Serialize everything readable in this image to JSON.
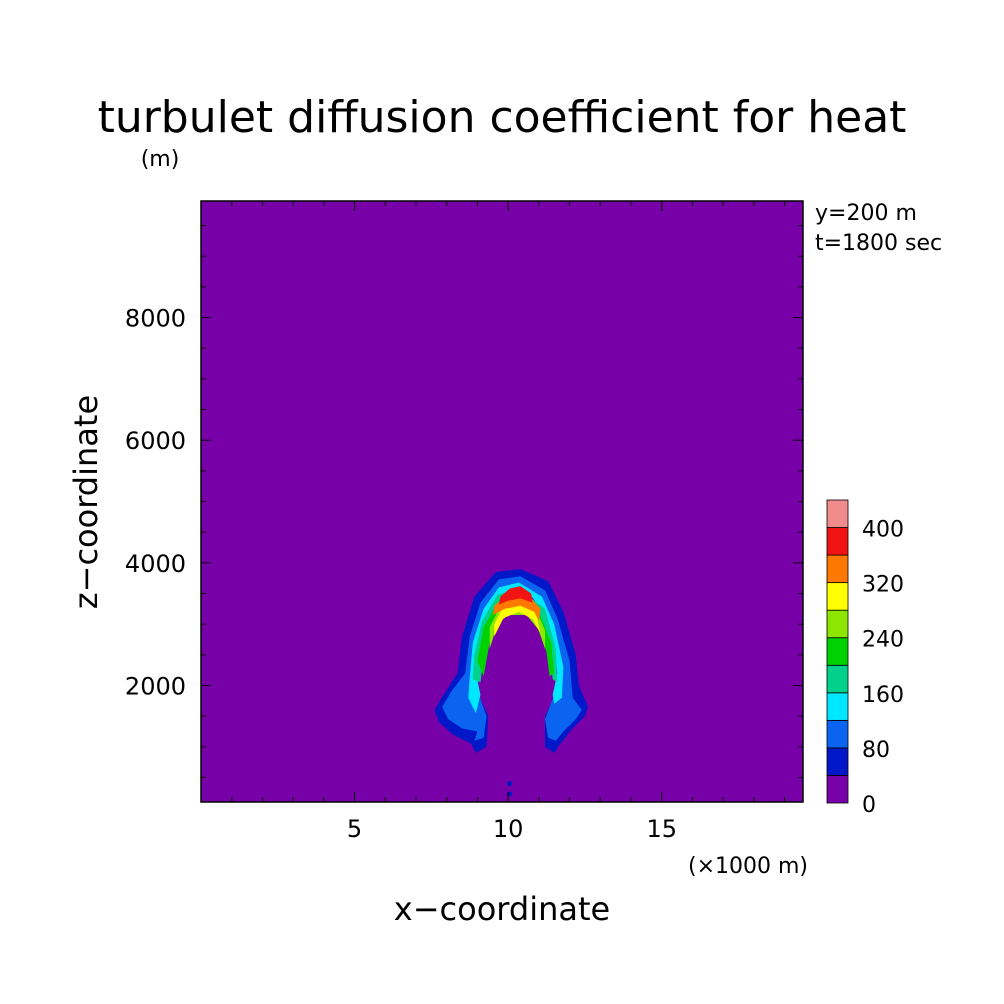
{
  "chart_data": {
    "type": "heatmap",
    "title": "turbulet diffusion coefficient for heat",
    "ylabel_unit": "(m)",
    "xlabel": "x−coordinate",
    "ylabel": "z−coordinate",
    "xunit": "(×1000 m)",
    "annotations": [
      "y=200 m",
      "t=1800 sec"
    ],
    "xlim": [
      0,
      19.6
    ],
    "ylim": [
      100,
      9900
    ],
    "xticks": [
      5,
      10,
      15
    ],
    "yticks": [
      2000,
      4000,
      6000,
      8000
    ],
    "colorbar": {
      "levels": [
        0,
        40,
        80,
        120,
        160,
        200,
        240,
        280,
        320,
        360,
        400,
        440
      ],
      "tick_labels": [
        "0",
        "80",
        "160",
        "240",
        "320",
        "400"
      ],
      "colors": [
        "#7800a8",
        "#0018c8",
        "#0a64f0",
        "#00e8ff",
        "#00d28c",
        "#00d200",
        "#8ce600",
        "#ffff00",
        "#ff7800",
        "#f01414",
        "#f08c8c"
      ]
    },
    "contours": [
      {
        "level": 40,
        "color": "#0018c8",
        "points": [
          [
            8.8,
            1050
          ],
          [
            8.95,
            900
          ],
          [
            9.3,
            1000
          ],
          [
            9.35,
            1500
          ],
          [
            9.0,
            1900
          ],
          [
            8.85,
            2300
          ],
          [
            8.95,
            3000
          ],
          [
            9.3,
            3500
          ],
          [
            9.9,
            3700
          ],
          [
            10.3,
            3750
          ],
          [
            10.8,
            3650
          ],
          [
            11.2,
            3400
          ],
          [
            11.6,
            2900
          ],
          [
            11.8,
            2300
          ],
          [
            11.6,
            1900
          ],
          [
            11.2,
            1500
          ],
          [
            11.2,
            1000
          ],
          [
            11.5,
            900
          ],
          [
            11.7,
            1050
          ],
          [
            12.1,
            1300
          ],
          [
            12.5,
            1500
          ],
          [
            12.6,
            1650
          ],
          [
            12.3,
            2000
          ],
          [
            12.2,
            2500
          ],
          [
            11.8,
            3200
          ],
          [
            11.3,
            3700
          ],
          [
            10.4,
            3900
          ],
          [
            9.6,
            3850
          ],
          [
            8.9,
            3450
          ],
          [
            8.5,
            2800
          ],
          [
            8.35,
            2200
          ],
          [
            7.9,
            1850
          ],
          [
            7.6,
            1600
          ],
          [
            7.75,
            1400
          ],
          [
            8.2,
            1200
          ]
        ]
      },
      {
        "level": 80,
        "color": "#0a64f0",
        "points": [
          [
            9.0,
            1250
          ],
          [
            8.9,
            1100
          ],
          [
            9.2,
            1150
          ],
          [
            9.3,
            1500
          ],
          [
            9.05,
            1850
          ],
          [
            8.95,
            2400
          ],
          [
            9.1,
            2900
          ],
          [
            9.45,
            3400
          ],
          [
            9.95,
            3600
          ],
          [
            10.3,
            3620
          ],
          [
            10.75,
            3550
          ],
          [
            11.15,
            3250
          ],
          [
            11.5,
            2800
          ],
          [
            11.65,
            2300
          ],
          [
            11.5,
            1850
          ],
          [
            11.2,
            1450
          ],
          [
            11.3,
            1150
          ],
          [
            11.55,
            1100
          ],
          [
            11.8,
            1250
          ],
          [
            12.2,
            1450
          ],
          [
            12.4,
            1600
          ],
          [
            12.1,
            1800
          ],
          [
            12.0,
            2400
          ],
          [
            11.6,
            3100
          ],
          [
            11.2,
            3550
          ],
          [
            10.4,
            3780
          ],
          [
            9.7,
            3730
          ],
          [
            9.1,
            3350
          ],
          [
            8.75,
            2800
          ],
          [
            8.6,
            2200
          ],
          [
            8.15,
            1900
          ],
          [
            7.85,
            1650
          ],
          [
            8.05,
            1450
          ],
          [
            8.5,
            1300
          ]
        ]
      },
      {
        "level": 120,
        "color": "#00e8ff",
        "points": [
          [
            8.95,
            1550
          ],
          [
            9.1,
            1850
          ],
          [
            8.95,
            2200
          ],
          [
            9.05,
            2700
          ],
          [
            9.35,
            3200
          ],
          [
            9.8,
            3480
          ],
          [
            10.3,
            3520
          ],
          [
            10.8,
            3430
          ],
          [
            11.2,
            3150
          ],
          [
            11.5,
            2700
          ],
          [
            11.6,
            2200
          ],
          [
            11.45,
            1850
          ],
          [
            11.5,
            1700
          ],
          [
            11.75,
            1800
          ],
          [
            11.8,
            2300
          ],
          [
            11.5,
            3000
          ],
          [
            11.1,
            3450
          ],
          [
            10.35,
            3680
          ],
          [
            9.7,
            3600
          ],
          [
            9.2,
            3250
          ],
          [
            8.85,
            2700
          ],
          [
            8.75,
            2150
          ],
          [
            8.7,
            1800
          ]
        ]
      },
      {
        "level": 160,
        "color": "#00d28c",
        "points": [
          [
            9.1,
            2050
          ],
          [
            9.2,
            2500
          ],
          [
            9.45,
            3000
          ],
          [
            9.85,
            3350
          ],
          [
            10.3,
            3400
          ],
          [
            10.75,
            3320
          ],
          [
            11.1,
            3050
          ],
          [
            11.35,
            2600
          ],
          [
            11.45,
            2100
          ],
          [
            11.6,
            2050
          ],
          [
            11.55,
            2600
          ],
          [
            11.2,
            3250
          ],
          [
            10.35,
            3580
          ],
          [
            9.65,
            3480
          ],
          [
            9.15,
            3050
          ],
          [
            8.9,
            2500
          ],
          [
            8.85,
            2100
          ]
        ]
      },
      {
        "level": 200,
        "color": "#00d200",
        "points": [
          [
            9.2,
            2150
          ],
          [
            9.4,
            2700
          ],
          [
            9.7,
            3050
          ],
          [
            10.05,
            3200
          ],
          [
            10.55,
            3200
          ],
          [
            10.95,
            2950
          ],
          [
            11.25,
            2550
          ],
          [
            11.35,
            2150
          ],
          [
            11.5,
            2200
          ],
          [
            11.4,
            2700
          ],
          [
            11.0,
            3200
          ],
          [
            10.35,
            3480
          ],
          [
            9.7,
            3380
          ],
          [
            9.2,
            2950
          ],
          [
            9.0,
            2400
          ]
        ]
      },
      {
        "level": 240,
        "color": "#8ce600",
        "points": [
          [
            9.4,
            2600
          ],
          [
            9.65,
            3000
          ],
          [
            10.0,
            3150
          ],
          [
            10.6,
            3150
          ],
          [
            11.0,
            2900
          ],
          [
            11.2,
            2600
          ],
          [
            11.2,
            2900
          ],
          [
            10.9,
            3250
          ],
          [
            10.35,
            3400
          ],
          [
            9.75,
            3300
          ],
          [
            9.4,
            2950
          ]
        ]
      },
      {
        "level": 280,
        "color": "#ffff00",
        "points": [
          [
            9.55,
            2800
          ],
          [
            9.85,
            3100
          ],
          [
            10.35,
            3200
          ],
          [
            10.8,
            3080
          ],
          [
            11.05,
            2850
          ],
          [
            10.9,
            3200
          ],
          [
            10.35,
            3340
          ],
          [
            9.8,
            3250
          ],
          [
            9.55,
            3000
          ]
        ]
      },
      {
        "level": 320,
        "color": "#ff7800",
        "points": [
          [
            9.5,
            3150
          ],
          [
            9.9,
            3250
          ],
          [
            10.4,
            3300
          ],
          [
            10.85,
            3200
          ],
          [
            11.0,
            3050
          ],
          [
            11.05,
            3250
          ],
          [
            10.7,
            3450
          ],
          [
            10.3,
            3500
          ],
          [
            9.9,
            3450
          ],
          [
            9.55,
            3300
          ]
        ]
      },
      {
        "level": 360,
        "color": "#f01414",
        "points": [
          [
            9.7,
            3320
          ],
          [
            10.0,
            3380
          ],
          [
            10.4,
            3420
          ],
          [
            10.8,
            3350
          ],
          [
            10.75,
            3500
          ],
          [
            10.4,
            3620
          ],
          [
            10.05,
            3580
          ],
          [
            9.75,
            3450
          ]
        ]
      }
    ],
    "dots": [
      {
        "x": 10.05,
        "z": 230,
        "color": "#0018c8"
      },
      {
        "x": 10.05,
        "z": 400,
        "color": "#0018c8"
      }
    ]
  }
}
